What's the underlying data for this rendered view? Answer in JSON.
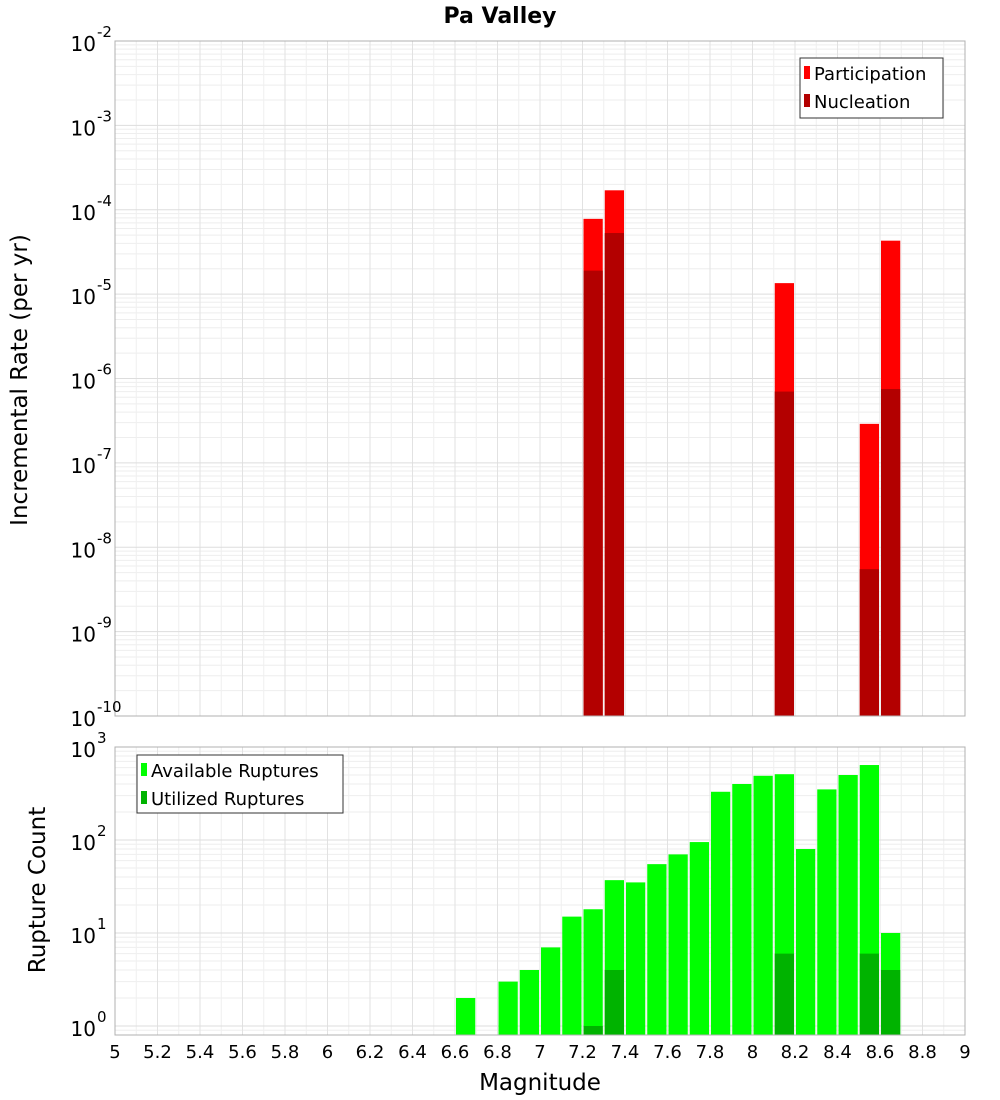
{
  "chart_data": [
    {
      "type": "bar",
      "title": "Pa Valley",
      "xlabel": "",
      "ylabel": "Incremental Rate (per yr)",
      "yscale": "log",
      "ylim": [
        1e-10,
        0.01
      ],
      "xlim": [
        5,
        9
      ],
      "bin_width": 0.1,
      "legend_position": "top-right",
      "y_ticks": [
        {
          "base": "10",
          "exp": "-10"
        },
        {
          "base": "10",
          "exp": "-9"
        },
        {
          "base": "10",
          "exp": "-8"
        },
        {
          "base": "10",
          "exp": "-7"
        },
        {
          "base": "10",
          "exp": "-6"
        },
        {
          "base": "10",
          "exp": "-5"
        },
        {
          "base": "10",
          "exp": "-4"
        },
        {
          "base": "10",
          "exp": "-3"
        },
        {
          "base": "10",
          "exp": "-2"
        }
      ],
      "series": [
        {
          "name": "Participation",
          "color": "#ff0000",
          "points": [
            {
              "x": 7.25,
              "y": 7.8e-05
            },
            {
              "x": 7.35,
              "y": 0.00017
            },
            {
              "x": 8.15,
              "y": 1.35e-05
            },
            {
              "x": 8.55,
              "y": 2.9e-07
            },
            {
              "x": 8.65,
              "y": 4.3e-05
            }
          ]
        },
        {
          "name": "Nucleation",
          "color": "#b30000",
          "points": [
            {
              "x": 7.25,
              "y": 1.9e-05
            },
            {
              "x": 7.35,
              "y": 5.3e-05
            },
            {
              "x": 8.15,
              "y": 7e-07
            },
            {
              "x": 8.55,
              "y": 5.5e-09
            },
            {
              "x": 8.65,
              "y": 7.5e-07
            }
          ]
        }
      ]
    },
    {
      "type": "bar",
      "title": "",
      "xlabel": "Magnitude",
      "ylabel": "Rupture Count",
      "yscale": "log",
      "ylim": [
        0.8,
        1000
      ],
      "xlim": [
        5,
        9
      ],
      "bin_width": 0.1,
      "legend_position": "top-left",
      "y_ticks": [
        {
          "base": "10",
          "exp": "0"
        },
        {
          "base": "10",
          "exp": "1"
        },
        {
          "base": "10",
          "exp": "2"
        },
        {
          "base": "10",
          "exp": "3"
        }
      ],
      "x_ticks": [
        "5",
        "5.2",
        "5.4",
        "5.6",
        "5.8",
        "6",
        "6.2",
        "6.4",
        "6.6",
        "6.8",
        "7",
        "7.2",
        "7.4",
        "7.6",
        "7.8",
        "8",
        "8.2",
        "8.4",
        "8.6",
        "8.8",
        "9"
      ],
      "series": [
        {
          "name": "Available Ruptures",
          "color": "#00ff00",
          "points": [
            {
              "x": 6.65,
              "y": 2
            },
            {
              "x": 6.85,
              "y": 3
            },
            {
              "x": 6.95,
              "y": 4
            },
            {
              "x": 7.05,
              "y": 7
            },
            {
              "x": 7.15,
              "y": 15
            },
            {
              "x": 7.25,
              "y": 18
            },
            {
              "x": 7.35,
              "y": 37
            },
            {
              "x": 7.45,
              "y": 35
            },
            {
              "x": 7.55,
              "y": 55
            },
            {
              "x": 7.65,
              "y": 70
            },
            {
              "x": 7.75,
              "y": 95
            },
            {
              "x": 7.85,
              "y": 330
            },
            {
              "x": 7.95,
              "y": 400
            },
            {
              "x": 8.05,
              "y": 490
            },
            {
              "x": 8.15,
              "y": 510
            },
            {
              "x": 8.25,
              "y": 80
            },
            {
              "x": 8.35,
              "y": 350
            },
            {
              "x": 8.45,
              "y": 500
            },
            {
              "x": 8.55,
              "y": 640
            },
            {
              "x": 8.65,
              "y": 10
            }
          ]
        },
        {
          "name": "Utilized Ruptures",
          "color": "#00b300",
          "points": [
            {
              "x": 7.25,
              "y": 1
            },
            {
              "x": 7.35,
              "y": 4
            },
            {
              "x": 8.15,
              "y": 6
            },
            {
              "x": 8.55,
              "y": 6
            },
            {
              "x": 8.65,
              "y": 4
            }
          ]
        }
      ]
    }
  ]
}
